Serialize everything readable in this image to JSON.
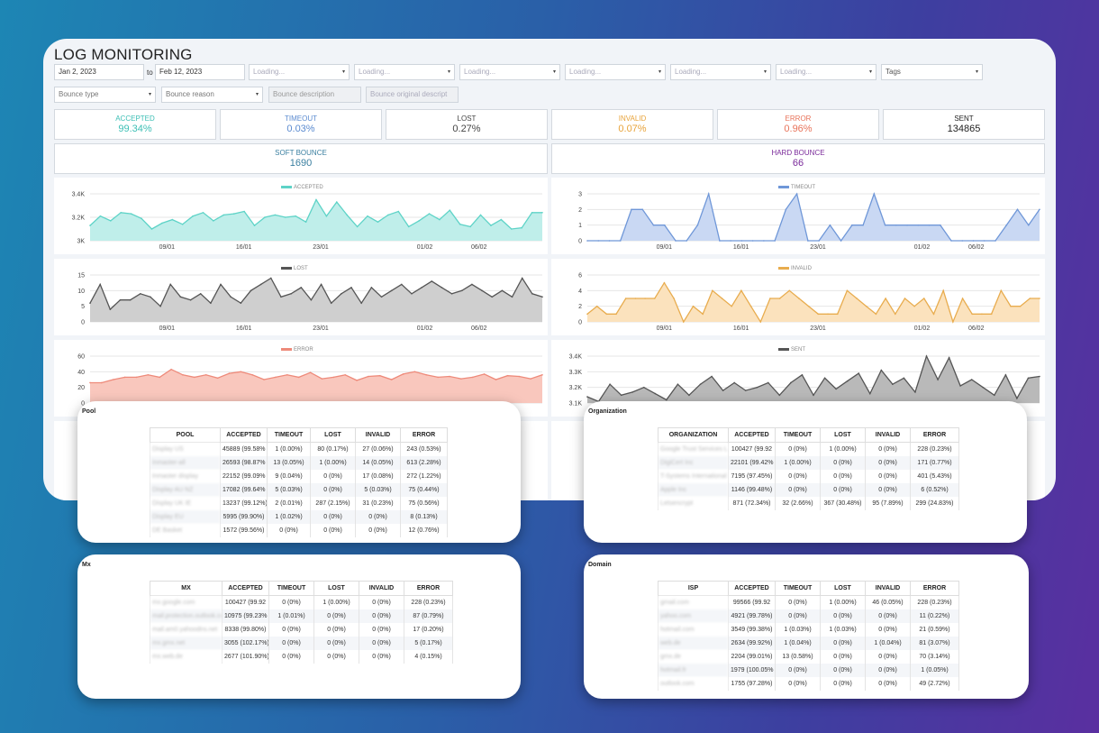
{
  "title": "LOG MONITORING",
  "filters": {
    "date_from": "Jan 2, 2023",
    "date_to_label": "to",
    "date_to": "Feb 12, 2023",
    "loading": [
      "Loading...",
      "Loading...",
      "Loading...",
      "Loading...",
      "Loading...",
      "Loading..."
    ],
    "tags": "Tags",
    "bounce_type": "Bounce type",
    "bounce_reason": "Bounce reason",
    "bounce_description": "Bounce description",
    "bounce_original": "Bounce original descript"
  },
  "metrics": [
    {
      "label": "ACCEPTED",
      "value": "99.34%",
      "color": "#3cbfb5"
    },
    {
      "label": "TIMEOUT",
      "value": "0.03%",
      "color": "#5b8bd0"
    },
    {
      "label": "LOST",
      "value": "0.27%",
      "color": "#444444"
    },
    {
      "label": "INVALID",
      "value": "0.07%",
      "color": "#e8a33a"
    },
    {
      "label": "ERROR",
      "value": "0.96%",
      "color": "#e8735a"
    },
    {
      "label": "SENT",
      "value": "134865",
      "color": "#222222"
    }
  ],
  "bounces": [
    {
      "label": "SOFT BOUNCE",
      "value": "1690",
      "color": "#3a7fa0"
    },
    {
      "label": "HARD BOUNCE",
      "value": "66",
      "color": "#7a2a9a"
    }
  ],
  "chart_data": [
    {
      "type": "area",
      "title": "ACCEPTED",
      "color": "#5ed3c7",
      "fill": "#bfeeea",
      "yticks": [
        "3.4K",
        "3.2K",
        "3K"
      ],
      "ylim": [
        3000,
        3400
      ],
      "xticks": [
        "09/01",
        "16/01",
        "23/01",
        "01/02",
        "06/02"
      ],
      "values": [
        3130,
        3210,
        3170,
        3240,
        3230,
        3190,
        3100,
        3150,
        3180,
        3140,
        3210,
        3240,
        3170,
        3220,
        3230,
        3250,
        3130,
        3200,
        3220,
        3200,
        3210,
        3160,
        3350,
        3210,
        3330,
        3220,
        3120,
        3210,
        3160,
        3220,
        3250,
        3120,
        3170,
        3230,
        3180,
        3260,
        3140,
        3120,
        3220,
        3130,
        3180,
        3100,
        3110,
        3240,
        3240
      ]
    },
    {
      "type": "area",
      "title": "TIMEOUT",
      "color": "#6f97d8",
      "fill": "#c9d8f3",
      "yticks": [
        "3",
        "2",
        "1",
        "0"
      ],
      "ylim": [
        0,
        3
      ],
      "xticks": [
        "09/01",
        "16/01",
        "23/01",
        "01/02",
        "06/02"
      ],
      "values": [
        0,
        0,
        0,
        0,
        2,
        2,
        1,
        1,
        0,
        0,
        1,
        3,
        0,
        0,
        0,
        0,
        0,
        0,
        2,
        3,
        0,
        0,
        1,
        0,
        1,
        1,
        3,
        1,
        1,
        1,
        1,
        1,
        1,
        0,
        0,
        0,
        0,
        0,
        1,
        2,
        1,
        2
      ]
    },
    {
      "type": "area",
      "title": "LOST",
      "color": "#555555",
      "fill": "#cfcfcf",
      "yticks": [
        "15",
        "10",
        "5",
        "0"
      ],
      "ylim": [
        0,
        15
      ],
      "xticks": [
        "09/01",
        "16/01",
        "23/01",
        "01/02",
        "06/02"
      ],
      "values": [
        6,
        12,
        4,
        7,
        7,
        9,
        8,
        5,
        12,
        8,
        7,
        9,
        6,
        12,
        8,
        6,
        10,
        12,
        14,
        8,
        9,
        11,
        7,
        12,
        6,
        9,
        11,
        6,
        11,
        8,
        10,
        12,
        9,
        11,
        13,
        11,
        9,
        10,
        12,
        10,
        8,
        10,
        8,
        14,
        9,
        8
      ]
    },
    {
      "type": "area",
      "title": "INVALID",
      "color": "#e8ac4e",
      "fill": "#fbe2bd",
      "yticks": [
        "6",
        "4",
        "2",
        "0"
      ],
      "ylim": [
        0,
        6
      ],
      "xticks": [
        "09/01",
        "16/01",
        "23/01",
        "01/02",
        "06/02"
      ],
      "values": [
        1,
        2,
        1,
        1,
        3,
        3,
        3,
        3,
        5,
        3,
        0,
        2,
        1,
        4,
        3,
        2,
        4,
        2,
        0,
        3,
        3,
        4,
        3,
        2,
        1,
        1,
        1,
        4,
        3,
        2,
        1,
        3,
        1,
        3,
        2,
        3,
        1,
        4,
        0,
        3,
        1,
        1,
        1,
        4,
        2,
        2,
        3,
        3
      ]
    },
    {
      "type": "area",
      "title": "ERROR",
      "color": "#ee8a7a",
      "fill": "#f9c7bd",
      "yticks": [
        "60",
        "40",
        "20",
        "0"
      ],
      "ylim": [
        0,
        60
      ],
      "xticks": [],
      "values": [
        26,
        26,
        30,
        33,
        33,
        36,
        33,
        43,
        36,
        33,
        36,
        32,
        38,
        40,
        36,
        30,
        33,
        36,
        33,
        39,
        31,
        33,
        36,
        29,
        34,
        35,
        30,
        37,
        40,
        36,
        33,
        34,
        31,
        33,
        37,
        30,
        35,
        34,
        31,
        36
      ]
    },
    {
      "type": "area",
      "title": "SENT",
      "color": "#555555",
      "fill": "#b9b9b9",
      "yticks": [
        "3.4K",
        "3.3K",
        "3.2K",
        "3.1K"
      ],
      "ylim": [
        3100,
        3400
      ],
      "xticks": [],
      "values": [
        3140,
        3110,
        3220,
        3150,
        3170,
        3200,
        3160,
        3120,
        3220,
        3150,
        3220,
        3270,
        3180,
        3230,
        3180,
        3200,
        3230,
        3150,
        3230,
        3280,
        3150,
        3260,
        3190,
        3240,
        3290,
        3160,
        3310,
        3220,
        3260,
        3170,
        3400,
        3250,
        3390,
        3210,
        3250,
        3200,
        3150,
        3280,
        3130,
        3260,
        3270
      ]
    }
  ],
  "tables": {
    "pool": {
      "title": "Pool",
      "headers": [
        "POOL",
        "ACCEPTED",
        "TIMEOUT",
        "LOST",
        "INVALID",
        "ERROR"
      ],
      "rows": [
        [
          "Display US",
          "45889 (99.58%",
          "1 (0.00%)",
          "80 (0.17%)",
          "27 (0.06%)",
          "243 (0.53%)"
        ],
        [
          "Inmaster-all",
          "26593 (98.87%",
          "13 (0.05%)",
          "1 (0.00%)",
          "14 (0.05%)",
          "613 (2.28%)"
        ],
        [
          "Inmaster display",
          "22152 (99.09%",
          "9 (0.04%)",
          "0 (0%)",
          "17 (0.08%)",
          "272 (1.22%)"
        ],
        [
          "Display AU NZ",
          "17082 (99.64%",
          "5 (0.03%)",
          "0 (0%)",
          "5 (0.03%)",
          "75 (0.44%)"
        ],
        [
          "Display UK IE",
          "13237 (99.12%)",
          "2 (0.01%)",
          "287 (2.15%)",
          "31 (0.23%)",
          "75 (0.56%)"
        ],
        [
          "Display EU",
          "5995 (99.90%)",
          "1 (0.02%)",
          "0 (0%)",
          "0 (0%)",
          "8 (0.13%)"
        ],
        [
          "DE Basket",
          "1572 (99.56%)",
          "0 (0%)",
          "0 (0%)",
          "0 (0%)",
          "12 (0.76%)"
        ]
      ]
    },
    "organization": {
      "title": "Organization",
      "headers": [
        "ORGANIZATION",
        "ACCEPTED",
        "TIMEOUT",
        "LOST",
        "INVALID",
        "ERROR"
      ],
      "rows": [
        [
          "Google Trust Services LLC",
          "100427 (99.92",
          "0 (0%)",
          "1 (0.00%)",
          "0 (0%)",
          "228 (0.23%)"
        ],
        [
          "DigiCert Inc",
          "22101 (99.42%",
          "1 (0.00%)",
          "0 (0%)",
          "0 (0%)",
          "171 (0.77%)"
        ],
        [
          "T-Systems International GmbH",
          "7195 (97.45%)",
          "0 (0%)",
          "0 (0%)",
          "0 (0%)",
          "401 (5.43%)"
        ],
        [
          "Apple Inc",
          "1146 (99.48%)",
          "0 (0%)",
          "0 (0%)",
          "0 (0%)",
          "6 (0.52%)"
        ],
        [
          "Letsencrypt",
          "871 (72.34%)",
          "32 (2.66%)",
          "367 (30.48%)",
          "95 (7.89%)",
          "299 (24.83%)"
        ]
      ]
    },
    "mx": {
      "title": "Mx",
      "headers": [
        "MX",
        "ACCEPTED",
        "TIMEOUT",
        "LOST",
        "INVALID",
        "ERROR"
      ],
      "rows": [
        [
          "mx.google.com",
          "100427 (99.92",
          "0 (0%)",
          "1 (0.00%)",
          "0 (0%)",
          "228 (0.23%)"
        ],
        [
          "mail.protection.outlook.com",
          "10975 (99.23%",
          "1 (0.01%)",
          "0 (0%)",
          "0 (0%)",
          "87 (0.79%)"
        ],
        [
          "mail.am0.yahoodns.net",
          "8338 (99.80%)",
          "0 (0%)",
          "0 (0%)",
          "0 (0%)",
          "17 (0.20%)"
        ],
        [
          "mx.gmx.net",
          "3055 (102.17%)",
          "0 (0%)",
          "0 (0%)",
          "0 (0%)",
          "5 (0.17%)"
        ],
        [
          "mx.web.de",
          "2677 (101.90%)",
          "0 (0%)",
          "0 (0%)",
          "0 (0%)",
          "4 (0.15%)"
        ]
      ]
    },
    "domain": {
      "title": "Domain",
      "headers": [
        "ISP",
        "ACCEPTED",
        "TIMEOUT",
        "LOST",
        "INVALID",
        "ERROR"
      ],
      "rows": [
        [
          "gmail.com",
          "99566 (99.92",
          "0 (0%)",
          "1 (0.00%)",
          "46 (0.05%)",
          "228 (0.23%)"
        ],
        [
          "yahoo.com",
          "4921 (99.78%)",
          "0 (0%)",
          "0 (0%)",
          "0 (0%)",
          "11 (0.22%)"
        ],
        [
          "hotmail.com",
          "3549 (99.38%)",
          "1 (0.03%)",
          "1 (0.03%)",
          "0 (0%)",
          "21 (0.59%)"
        ],
        [
          "web.de",
          "2634 (99.92%)",
          "1 (0.04%)",
          "0 (0%)",
          "1 (0.04%)",
          "81 (3.07%)"
        ],
        [
          "gmx.de",
          "2204 (99.01%)",
          "13 (0.58%)",
          "0 (0%)",
          "0 (0%)",
          "70 (3.14%)"
        ],
        [
          "hotmail.fr",
          "1979 (100.05%",
          "0 (0%)",
          "0 (0%)",
          "0 (0%)",
          "1 (0.05%)"
        ],
        [
          "outlook.com",
          "1755 (97.28%)",
          "0 (0%)",
          "0 (0%)",
          "0 (0%)",
          "49 (2.72%)"
        ]
      ]
    }
  }
}
